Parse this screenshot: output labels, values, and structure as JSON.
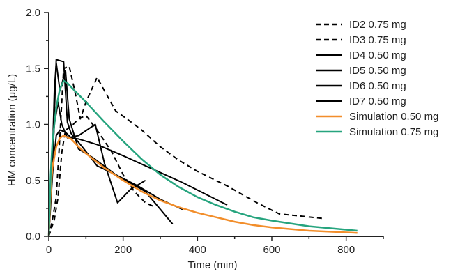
{
  "chart_data": {
    "type": "line",
    "title": "",
    "xlabel": "Time (min)",
    "ylabel": "HM concentration (μg/L)",
    "xlim": [
      0,
      900
    ],
    "ylim": [
      0,
      2.0
    ],
    "xticks": [
      0,
      200,
      400,
      600,
      800
    ],
    "yticks": [
      0,
      0.5,
      1.0,
      1.5,
      2.0
    ],
    "ytick_labels": [
      "0.0",
      "0.5",
      "1.0",
      "1.5",
      "2.0"
    ],
    "legend_position": "top-right",
    "grid": false,
    "series": [
      {
        "name": "ID2 0.75 mg",
        "style": "dashed",
        "color": "#000000",
        "points": [
          [
            0,
            0
          ],
          [
            10,
            0.15
          ],
          [
            20,
            0.35
          ],
          [
            30,
            0.9
          ],
          [
            40,
            1.5
          ],
          [
            55,
            1.52
          ],
          [
            70,
            1.3
          ],
          [
            85,
            1.05
          ],
          [
            100,
            1.2
          ],
          [
            130,
            1.42
          ],
          [
            150,
            1.3
          ],
          [
            180,
            1.12
          ],
          [
            210,
            1.05
          ],
          [
            250,
            0.95
          ],
          [
            300,
            0.8
          ],
          [
            350,
            0.68
          ],
          [
            400,
            0.58
          ],
          [
            480,
            0.45
          ],
          [
            560,
            0.3
          ],
          [
            620,
            0.2
          ],
          [
            680,
            0.18
          ],
          [
            735,
            0.16
          ]
        ]
      },
      {
        "name": "ID3 0.75 mg",
        "style": "dashed",
        "color": "#000000",
        "points": [
          [
            0,
            0
          ],
          [
            15,
            0.15
          ],
          [
            25,
            0.35
          ],
          [
            35,
            0.75
          ],
          [
            45,
            0.95
          ],
          [
            60,
            0.98
          ],
          [
            80,
            1.05
          ],
          [
            100,
            1.08
          ],
          [
            130,
            0.95
          ],
          [
            170,
            0.75
          ],
          [
            200,
            0.55
          ],
          [
            230,
            0.4
          ],
          [
            260,
            0.3
          ],
          [
            280,
            0.27
          ]
        ]
      },
      {
        "name": "ID4 0.50 mg",
        "style": "solid",
        "color": "#000000",
        "points": [
          [
            0,
            0
          ],
          [
            8,
            0.5
          ],
          [
            15,
            1.3
          ],
          [
            20,
            1.55
          ],
          [
            30,
            1.3
          ],
          [
            45,
            1.48
          ],
          [
            55,
            1.05
          ],
          [
            80,
            0.78
          ],
          [
            120,
            0.7
          ],
          [
            180,
            0.55
          ],
          [
            260,
            0.4
          ],
          [
            333,
            0.11
          ]
        ]
      },
      {
        "name": "ID5 0.50 mg",
        "style": "solid",
        "color": "#000000",
        "points": [
          [
            0,
            0
          ],
          [
            10,
            0.55
          ],
          [
            20,
            0.9
          ],
          [
            30,
            0.95
          ],
          [
            45,
            0.93
          ],
          [
            60,
            0.88
          ],
          [
            80,
            0.87
          ],
          [
            130,
            0.82
          ],
          [
            200,
            0.72
          ],
          [
            280,
            0.6
          ],
          [
            360,
            0.48
          ],
          [
            480,
            0.28
          ]
        ]
      },
      {
        "name": "ID6 0.50 mg",
        "style": "solid",
        "color": "#000000",
        "points": [
          [
            0,
            0
          ],
          [
            12,
            0.8
          ],
          [
            20,
            1.58
          ],
          [
            40,
            1.56
          ],
          [
            50,
            1.02
          ],
          [
            60,
            0.92
          ],
          [
            90,
            0.8
          ],
          [
            130,
            0.63
          ],
          [
            180,
            0.55
          ],
          [
            240,
            0.45
          ],
          [
            300,
            0.33
          ],
          [
            360,
            0.24
          ]
        ]
      },
      {
        "name": "ID7 0.50 mg",
        "style": "solid",
        "color": "#000000",
        "points": [
          [
            0,
            0
          ],
          [
            8,
            0.6
          ],
          [
            15,
            1.0
          ],
          [
            25,
            1.2
          ],
          [
            35,
            1.0
          ],
          [
            50,
            0.88
          ],
          [
            80,
            0.9
          ],
          [
            125,
            1.0
          ],
          [
            150,
            0.65
          ],
          [
            185,
            0.3
          ],
          [
            220,
            0.42
          ],
          [
            260,
            0.5
          ]
        ]
      },
      {
        "name": "Simulation 0.50 mg",
        "style": "solid",
        "color": "#f28e2b",
        "points": [
          [
            0,
            0
          ],
          [
            5,
            0.4
          ],
          [
            10,
            0.62
          ],
          [
            20,
            0.8
          ],
          [
            30,
            0.88
          ],
          [
            40,
            0.9
          ],
          [
            60,
            0.87
          ],
          [
            80,
            0.8
          ],
          [
            100,
            0.74
          ],
          [
            150,
            0.61
          ],
          [
            200,
            0.5
          ],
          [
            250,
            0.4
          ],
          [
            300,
            0.32
          ],
          [
            350,
            0.26
          ],
          [
            400,
            0.21
          ],
          [
            450,
            0.17
          ],
          [
            500,
            0.13
          ],
          [
            550,
            0.1
          ],
          [
            600,
            0.08
          ],
          [
            700,
            0.05
          ],
          [
            830,
            0.03
          ]
        ]
      },
      {
        "name": "Simulation 0.75 mg",
        "style": "solid",
        "color": "#26a47e",
        "points": [
          [
            0,
            0
          ],
          [
            5,
            0.55
          ],
          [
            10,
            0.85
          ],
          [
            20,
            1.15
          ],
          [
            30,
            1.32
          ],
          [
            40,
            1.39
          ],
          [
            50,
            1.37
          ],
          [
            70,
            1.3
          ],
          [
            100,
            1.2
          ],
          [
            150,
            1.02
          ],
          [
            200,
            0.85
          ],
          [
            250,
            0.69
          ],
          [
            300,
            0.55
          ],
          [
            350,
            0.44
          ],
          [
            400,
            0.35
          ],
          [
            450,
            0.28
          ],
          [
            500,
            0.22
          ],
          [
            550,
            0.17
          ],
          [
            600,
            0.14
          ],
          [
            700,
            0.09
          ],
          [
            830,
            0.05
          ]
        ]
      }
    ]
  }
}
